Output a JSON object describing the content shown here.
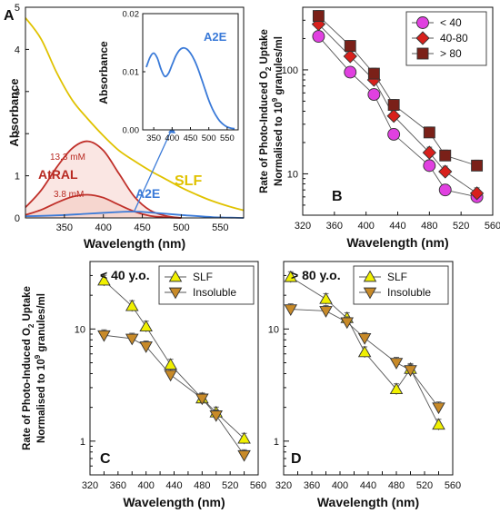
{
  "chart_data": [
    {
      "panel": "A",
      "type": "line",
      "xlabel": "Wavelength (nm)",
      "ylabel": "Absorbance",
      "xlim": [
        300,
        580
      ],
      "ylim": [
        0,
        5
      ],
      "xticks": [
        350,
        400,
        450,
        500,
        550
      ],
      "yticks": [
        0,
        1,
        2,
        3,
        4,
        5
      ],
      "series": [
        {
          "name": "SLF",
          "color": "#e0c200",
          "x": [
            300,
            320,
            340,
            360,
            380,
            400,
            420,
            440,
            460,
            480,
            500,
            520,
            540,
            560,
            580
          ],
          "y": [
            4.75,
            4.25,
            3.45,
            2.8,
            2.35,
            1.95,
            1.6,
            1.35,
            1.12,
            0.92,
            0.72,
            0.55,
            0.4,
            0.28,
            0.18
          ]
        },
        {
          "name": "AtRAL",
          "color": "#c0302a",
          "label": "13.3 mM",
          "x": [
            300,
            320,
            340,
            360,
            380,
            400,
            420,
            440,
            460,
            480,
            500
          ],
          "y": [
            0.25,
            0.65,
            1.2,
            1.65,
            1.82,
            1.6,
            1.05,
            0.5,
            0.18,
            0.05,
            0.0
          ]
        },
        {
          "name": "AtRAL 3.8 mM",
          "color": "#c0302a",
          "label": "3.8 mM",
          "x": [
            300,
            320,
            340,
            360,
            380,
            400,
            420,
            440,
            460,
            480,
            500
          ],
          "y": [
            0.07,
            0.19,
            0.36,
            0.5,
            0.55,
            0.48,
            0.31,
            0.15,
            0.05,
            0.015,
            0.0
          ]
        },
        {
          "name": "A2E",
          "color": "#3a7ad8",
          "x": [
            300,
            340,
            380,
            420,
            440,
            460,
            500,
            540,
            580
          ],
          "y": [
            0.04,
            0.06,
            0.1,
            0.14,
            0.15,
            0.13,
            0.07,
            0.02,
            0.0
          ]
        }
      ],
      "annotations": {
        "atral": "AtRAL",
        "atral_high": "13.3 mM",
        "atral_low": "3.8 mM",
        "slf": "SLF",
        "a2e": "A2E"
      },
      "inset": {
        "ylabel": "Absorbance",
        "title": "A2E",
        "xlim": [
          320,
          580
        ],
        "ylim": [
          0,
          0.02
        ],
        "xticks": [
          350,
          400,
          450,
          500,
          550
        ],
        "yticks": [
          0.0,
          0.01,
          0.02
        ],
        "ytick_labels": [
          "0.00",
          "0.01",
          "0.02"
        ],
        "x": [
          330,
          340,
          350,
          360,
          370,
          380,
          390,
          400,
          410,
          420,
          430,
          440,
          450,
          460,
          470,
          480,
          490,
          500,
          510,
          520,
          530,
          540,
          550,
          560,
          570
        ],
        "y": [
          0.0108,
          0.0125,
          0.0132,
          0.0123,
          0.0104,
          0.0092,
          0.0097,
          0.0112,
          0.0127,
          0.0137,
          0.0141,
          0.0139,
          0.0132,
          0.0121,
          0.0106,
          0.0088,
          0.0069,
          0.0051,
          0.0036,
          0.0024,
          0.0015,
          0.0009,
          0.0005,
          0.0003,
          0.0002
        ]
      }
    },
    {
      "panel": "B",
      "type": "scatter",
      "xlabel": "Wavelength (nm)",
      "ylabel": "Rate of Photo-Induced O2 Uptake Normalised to 10^9 granules/ml",
      "ylabel_line1": "Rate of Photo-Induced O",
      "ylabel_sub": "2",
      "ylabel_line1_end": " Uptake",
      "ylabel_line2": "Normalised to 10",
      "ylabel_sup": "9",
      "ylabel_line2_end": " granules/ml",
      "xlim": [
        320,
        560
      ],
      "ylim": [
        4,
        400
      ],
      "yscale": "log",
      "xticks": [
        320,
        360,
        400,
        440,
        480,
        520,
        560
      ],
      "yticks": [
        10,
        100
      ],
      "legend_position": "top-right",
      "series": [
        {
          "name": "< 40",
          "marker": "circle",
          "color": "#e040e0",
          "x": [
            340,
            380,
            410,
            435,
            480,
            500,
            540
          ],
          "y": [
            210,
            95,
            58,
            24,
            12,
            7,
            6
          ]
        },
        {
          "name": "40-80",
          "marker": "diamond",
          "color": "#d8201c",
          "x": [
            340,
            380,
            410,
            435,
            480,
            500,
            540
          ],
          "y": [
            275,
            135,
            80,
            36,
            16,
            10.5,
            6.5
          ]
        },
        {
          "name": "> 80",
          "marker": "square",
          "color": "#7a2018",
          "x": [
            340,
            380,
            410,
            435,
            480,
            500,
            540
          ],
          "y": [
            330,
            170,
            92,
            46,
            25,
            15,
            12
          ]
        }
      ]
    },
    {
      "panel": "C",
      "type": "scatter",
      "annotation": "< 40 y.o.",
      "xlabel": "Wavelength (nm)",
      "ylabel": "Rate of Photo-Induced O2 Uptake Normalised to 10^9 granules/ml",
      "ylabel_line1": "Rate of Photo-Induced O",
      "ylabel_sub": "2",
      "ylabel_line1_end": " Uptake",
      "ylabel_line2": "Normalised to 10",
      "ylabel_sup": "9",
      "ylabel_line2_end": " granules/ml",
      "xlim": [
        320,
        560
      ],
      "ylim": [
        0.5,
        40
      ],
      "yscale": "log",
      "xticks": [
        320,
        340,
        360,
        380,
        400,
        420,
        440,
        460,
        480,
        500,
        520,
        540,
        560
      ],
      "xtick_labels": [
        "320",
        "",
        "360",
        "",
        "400",
        "",
        "440",
        "",
        "480",
        "",
        "520",
        "",
        "560"
      ],
      "yticks": [
        1,
        10
      ],
      "legend_position": "top-right",
      "series": [
        {
          "name": "SLF",
          "marker": "triangle-up",
          "color": "#f0f000",
          "x": [
            340,
            380,
            400,
            435,
            480,
            500,
            540
          ],
          "y": [
            27,
            16,
            10.5,
            4.8,
            2.4,
            1.8,
            1.05
          ]
        },
        {
          "name": "Insoluble",
          "marker": "triangle-down",
          "color": "#c88a28",
          "x": [
            340,
            380,
            400,
            435,
            480,
            500,
            540
          ],
          "y": [
            8.8,
            8.2,
            7.0,
            3.9,
            2.4,
            1.7,
            0.75
          ]
        }
      ]
    },
    {
      "panel": "D",
      "type": "scatter",
      "annotation": "> 80 y.o.",
      "xlabel": "Wavelength (nm)",
      "xlim": [
        320,
        560
      ],
      "ylim": [
        0.5,
        40
      ],
      "yscale": "log",
      "xticks": [
        320,
        340,
        360,
        380,
        400,
        420,
        440,
        460,
        480,
        500,
        520,
        540,
        560
      ],
      "xtick_labels": [
        "320",
        "",
        "360",
        "",
        "400",
        "",
        "440",
        "",
        "480",
        "",
        "520",
        "",
        "560"
      ],
      "yticks": [
        1,
        10
      ],
      "legend_position": "top-right",
      "series": [
        {
          "name": "SLF",
          "marker": "triangle-up",
          "color": "#f0f000",
          "x": [
            330,
            380,
            410,
            435,
            480,
            500,
            540
          ],
          "y": [
            29,
            18.5,
            12.5,
            6.2,
            2.9,
            4.4,
            1.4
          ]
        },
        {
          "name": "Insoluble",
          "marker": "triangle-down",
          "color": "#c88a28",
          "x": [
            330,
            380,
            410,
            435,
            480,
            500,
            540
          ],
          "y": [
            15,
            14.5,
            11.5,
            8.3,
            5.0,
            4.3,
            2.0
          ]
        }
      ]
    }
  ]
}
